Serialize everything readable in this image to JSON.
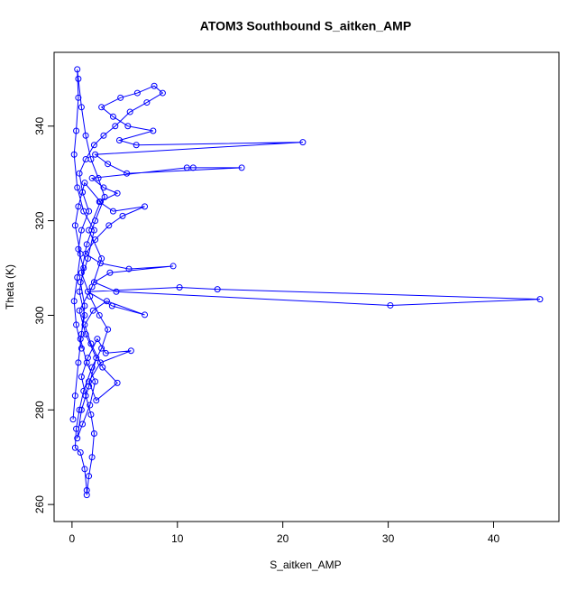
{
  "chart_data": {
    "type": "line",
    "title": "ATOM3 Southbound S_aitken_AMP",
    "x_label": "S_aitken_AMP",
    "y_label": "Theta (K)",
    "x": [
      0.1,
      0.3,
      0.6,
      0.9,
      1.2,
      0.8,
      1.5,
      2.1,
      1.1,
      0.5,
      0.2,
      0.4,
      0.6,
      0.5,
      0.6,
      0.9,
      1.3,
      1.8,
      2.5,
      3.1,
      2.2,
      1.4,
      0.9,
      1.7,
      2.6,
      3.4,
      2.8,
      1.9,
      1.1,
      0.7,
      0.4,
      0.3,
      0.8,
      1.2,
      1.4,
      1.4,
      1.6,
      1.9,
      2.1,
      1.8,
      1.3,
      0.9,
      1.5,
      2.4,
      3.2,
      5.6,
      2.7,
      1.6,
      2.3,
      4.3,
      2.9,
      1.8,
      1.2,
      2.0,
      3.3,
      6.9,
      3.8,
      1.5,
      10.2,
      13.8,
      44.4,
      30.2,
      4.2,
      2.1,
      3.6,
      9.6,
      5.4,
      2.7,
      1.3,
      2.2,
      3.5,
      4.8,
      6.9,
      3.9,
      2.6,
      4.3,
      3.0,
      1.9,
      10.9,
      11.5,
      16.1,
      5.2,
      3.4,
      2.2,
      21.9,
      6.1,
      4.5,
      7.7,
      5.3,
      3.9,
      2.8,
      4.6,
      6.2,
      7.8,
      8.6,
      7.1,
      5.5,
      4.1,
      3.0,
      2.1,
      1.3,
      0.7,
      1.0,
      1.6,
      0.9,
      0.6,
      1.1,
      0.7,
      1.2,
      0.8,
      1.4,
      2.2,
      1.7,
      1.0,
      0.5,
      0.9,
      1.6,
      2.3,
      1.3,
      0.7,
      1.9,
      2.8,
      1.6,
      2.7,
      1.2,
      0.6,
      0.3,
      0.8,
      0.5,
      0.2,
      0.4,
      0.9
    ],
    "series": [
      {
        "name": "Theta (K)",
        "color": "#0000ff",
        "values": [
          278,
          283,
          290,
          296,
          302,
          307,
          312,
          318,
          322,
          327,
          334,
          339,
          346,
          352,
          350,
          344,
          338,
          333,
          329,
          325,
          320,
          315,
          309,
          304,
          300,
          297,
          293,
          289,
          284,
          280,
          276,
          272,
          271,
          267.5,
          263,
          262,
          266,
          270,
          275,
          279,
          283,
          287,
          291,
          295,
          292,
          292.5,
          290,
          286,
          282,
          285.7,
          289,
          294,
          298,
          301,
          303,
          300.1,
          302,
          305,
          305.9,
          305.5,
          303.4,
          302.1,
          305,
          307,
          309,
          310.4,
          309.8,
          311,
          313,
          316,
          319,
          321,
          323,
          322,
          324,
          325.8,
          327,
          329,
          331.2,
          331.2,
          331.2,
          330,
          332,
          334,
          336.6,
          336,
          337,
          339,
          340,
          342,
          344,
          346,
          347,
          348.5,
          347,
          345,
          343,
          340,
          338,
          336,
          333,
          330,
          326,
          322,
          318,
          314,
          310,
          305,
          300,
          295,
          290,
          286,
          281,
          277,
          274,
          280,
          285,
          291,
          296,
          301,
          306,
          312,
          318,
          324,
          328,
          323,
          319,
          313,
          308,
          303,
          298,
          293
        ]
      }
    ],
    "xlim": [
      -1.7,
      46.2
    ],
    "ylim": [
      256.4,
      355.6
    ],
    "xticks": [
      0,
      10,
      20,
      30,
      40
    ],
    "yticks": [
      260,
      280,
      300,
      320,
      340
    ],
    "markers": true,
    "grid": false
  }
}
